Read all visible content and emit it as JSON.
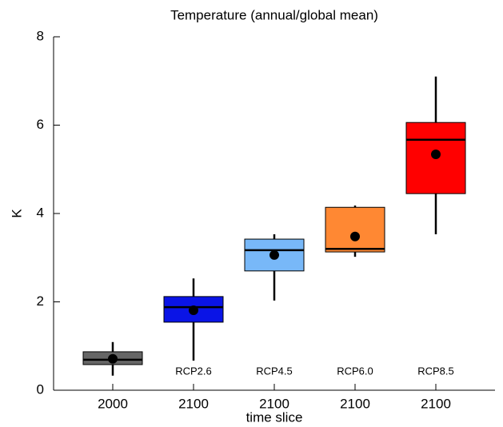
{
  "chart_data": {
    "type": "box",
    "title": "Temperature (annual/global mean)",
    "xlabel": "time slice",
    "ylabel": "K",
    "categories": [
      "2000",
      "2100",
      "2100",
      "2100",
      "2100"
    ],
    "scenarios": [
      null,
      "RCP2.6",
      "RCP4.5",
      "RCP6.0",
      "RCP8.5"
    ],
    "boxes": [
      {
        "whisker_low": 0.33,
        "q1": 0.58,
        "median": 0.69,
        "q3": 0.87,
        "whisker_high": 1.09,
        "mean": 0.71,
        "color": "#666666"
      },
      {
        "whisker_low": 0.67,
        "q1": 1.54,
        "median": 1.88,
        "q3": 2.12,
        "whisker_high": 2.53,
        "mean": 1.81,
        "color": "#0a14e6"
      },
      {
        "whisker_low": 2.03,
        "q1": 2.7,
        "median": 3.17,
        "q3": 3.42,
        "whisker_high": 3.53,
        "mean": 3.06,
        "color": "#78b8f8"
      },
      {
        "whisker_low": 3.02,
        "q1": 3.13,
        "median": 3.2,
        "q3": 4.14,
        "whisker_high": 4.18,
        "mean": 3.48,
        "color": "#ff8833"
      },
      {
        "whisker_low": 3.53,
        "q1": 4.45,
        "median": 5.67,
        "q3": 6.06,
        "whisker_high": 7.1,
        "mean": 5.34,
        "color": "#ff0000"
      }
    ],
    "ylim": [
      0,
      8
    ],
    "yticks": [
      0,
      2,
      4,
      6,
      8
    ]
  }
}
